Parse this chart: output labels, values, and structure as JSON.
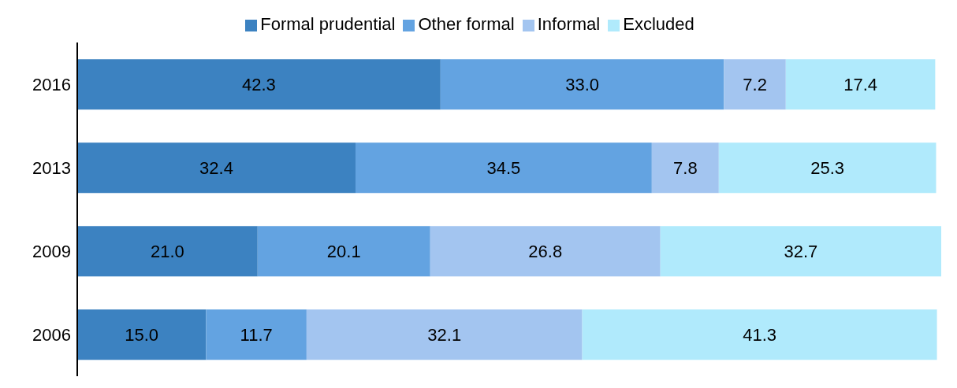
{
  "chart_data": {
    "type": "bar",
    "orientation": "horizontal",
    "stacked": true,
    "legend": "top",
    "categories": [
      "2016",
      "2013",
      "2009",
      "2006"
    ],
    "series": [
      {
        "name": "Formal prudential",
        "color": "#3c82c1",
        "values": [
          42.3,
          32.4,
          21.0,
          15.0
        ],
        "value_labels": [
          "42.3",
          "32.4",
          "21.0",
          "15.0"
        ]
      },
      {
        "name": "Other formal",
        "color": "#63a3e1",
        "values": [
          33.0,
          34.5,
          20.1,
          11.7
        ],
        "value_labels": [
          "33.0",
          "34.5",
          "20.1",
          "11.7"
        ]
      },
      {
        "name": "Informal",
        "color": "#a3c5f0",
        "values": [
          7.2,
          7.8,
          26.8,
          32.1
        ],
        "value_labels": [
          "7.2",
          "7.8",
          "26.8",
          "32.1"
        ]
      },
      {
        "name": "Excluded",
        "color": "#b0eafc",
        "values": [
          17.4,
          25.3,
          32.7,
          41.3
        ],
        "value_labels": [
          "17.4",
          "25.3",
          "32.7",
          "41.3"
        ]
      }
    ]
  }
}
